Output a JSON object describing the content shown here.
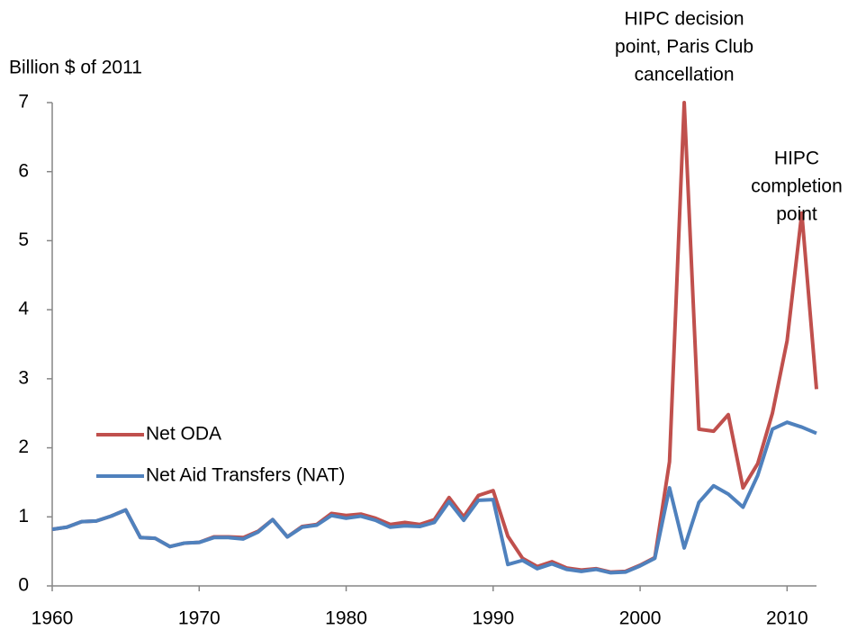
{
  "chart_data": {
    "type": "line",
    "y_axis_label": "Billion $ of 2011",
    "x": [
      1960,
      1961,
      1962,
      1963,
      1964,
      1965,
      1966,
      1967,
      1968,
      1969,
      1970,
      1971,
      1972,
      1973,
      1974,
      1975,
      1976,
      1977,
      1978,
      1979,
      1980,
      1981,
      1982,
      1983,
      1984,
      1985,
      1986,
      1987,
      1988,
      1989,
      1990,
      1991,
      1992,
      1993,
      1994,
      1995,
      1996,
      1997,
      1998,
      1999,
      2000,
      2001,
      2002,
      2003,
      2004,
      2005,
      2006,
      2007,
      2008,
      2009,
      2010,
      2011,
      2012
    ],
    "series": [
      {
        "name": "Net ODA",
        "color": "#c0504d",
        "values": [
          0.82,
          0.85,
          0.93,
          0.94,
          1.01,
          1.1,
          0.7,
          0.69,
          0.57,
          0.62,
          0.63,
          0.71,
          0.71,
          0.7,
          0.79,
          0.96,
          0.71,
          0.86,
          0.89,
          1.05,
          1.02,
          1.04,
          0.98,
          0.89,
          0.92,
          0.89,
          0.96,
          1.28,
          1.0,
          1.31,
          1.38,
          0.72,
          0.4,
          0.28,
          0.35,
          0.26,
          0.23,
          0.25,
          0.2,
          0.21,
          0.3,
          0.41,
          1.8,
          7.0,
          2.27,
          2.24,
          2.48,
          1.42,
          1.77,
          2.5,
          3.55,
          5.4,
          2.85
        ]
      },
      {
        "name": "Net Aid Transfers (NAT)",
        "color": "#4f81bd",
        "values": [
          0.82,
          0.85,
          0.93,
          0.94,
          1.01,
          1.1,
          0.7,
          0.69,
          0.57,
          0.62,
          0.63,
          0.7,
          0.7,
          0.68,
          0.78,
          0.96,
          0.71,
          0.85,
          0.88,
          1.02,
          0.98,
          1.01,
          0.95,
          0.85,
          0.87,
          0.86,
          0.92,
          1.22,
          0.95,
          1.24,
          1.25,
          0.31,
          0.37,
          0.25,
          0.32,
          0.24,
          0.21,
          0.24,
          0.19,
          0.2,
          0.29,
          0.4,
          1.42,
          0.55,
          1.21,
          1.45,
          1.33,
          1.14,
          1.6,
          2.27,
          2.37,
          2.3,
          2.21
        ]
      }
    ],
    "xlim": [
      1960,
      2012
    ],
    "xticks": [
      1960,
      1970,
      1980,
      1990,
      2000,
      2010
    ],
    "ylim": [
      0,
      7
    ],
    "yticks": [
      0,
      1,
      2,
      3,
      4,
      5,
      6,
      7
    ],
    "grid": false,
    "legend": "left",
    "annotations": [
      {
        "x": 2003,
        "lines": [
          "HIPC decision",
          "point, Paris Club",
          "cancellation"
        ]
      },
      {
        "x": 2011,
        "lines": [
          "HIPC",
          "completion",
          "point"
        ]
      }
    ]
  }
}
